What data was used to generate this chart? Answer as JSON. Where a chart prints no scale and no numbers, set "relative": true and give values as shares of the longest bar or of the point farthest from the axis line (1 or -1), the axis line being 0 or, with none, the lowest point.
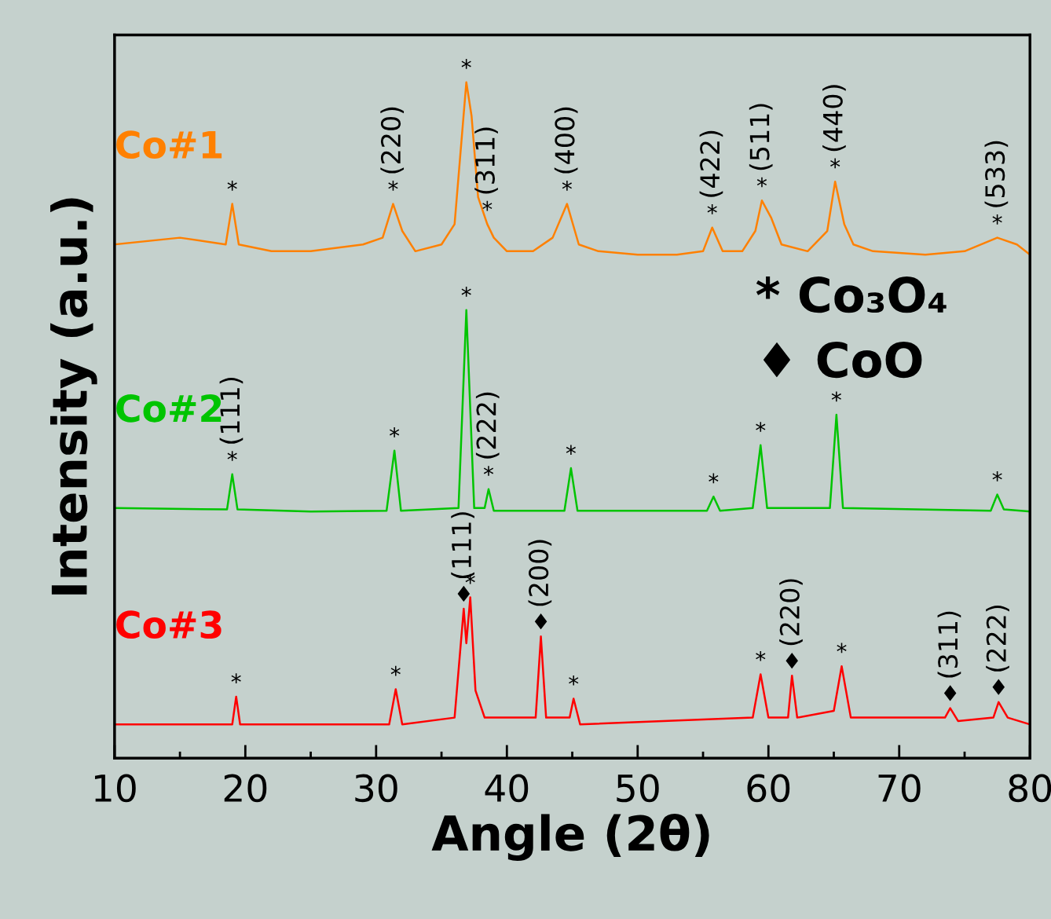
{
  "chart_data": {
    "type": "line",
    "relative": true,
    "xlabel": "Angle (2θ)",
    "ylabel": "Intensity (a.u.)",
    "xlim": [
      10,
      80
    ],
    "xticks": [
      10,
      20,
      30,
      40,
      50,
      60,
      70,
      80
    ],
    "grid": false,
    "legend": false,
    "series": [
      {
        "name": "Co#1",
        "color": "#ff8000",
        "x": [
          10,
          15,
          18.5,
          19,
          19.5,
          22,
          25,
          29,
          30.5,
          31.3,
          32,
          33,
          35,
          36,
          36.6,
          36.9,
          37.3,
          37.8,
          38.5,
          39,
          40,
          42,
          43.5,
          44.6,
          45.5,
          47,
          50,
          53,
          55,
          55.7,
          56.5,
          58,
          59,
          59.5,
          60.2,
          61,
          63,
          64.5,
          65.1,
          65.8,
          66.5,
          68,
          72,
          75,
          77.5,
          79,
          80
        ],
        "values": [
          0.76,
          0.77,
          0.76,
          0.82,
          0.76,
          0.75,
          0.75,
          0.76,
          0.77,
          0.82,
          0.78,
          0.75,
          0.76,
          0.79,
          0.93,
          1.0,
          0.95,
          0.83,
          0.79,
          0.77,
          0.75,
          0.75,
          0.77,
          0.82,
          0.76,
          0.75,
          0.745,
          0.745,
          0.75,
          0.785,
          0.75,
          0.75,
          0.78,
          0.825,
          0.8,
          0.76,
          0.75,
          0.78,
          0.853,
          0.79,
          0.76,
          0.75,
          0.745,
          0.75,
          0.77,
          0.76,
          0.745
        ]
      },
      {
        "name": "Co#2",
        "color": "#00c400",
        "x": [
          10,
          18.6,
          19,
          19.4,
          25,
          30.8,
          31.4,
          31.9,
          36.3,
          36.9,
          37.5,
          38.3,
          38.6,
          39,
          44.4,
          44.9,
          45.4,
          55.3,
          55.8,
          56.3,
          58.8,
          59.4,
          59.9,
          64.7,
          65.2,
          65.7,
          77,
          77.5,
          78,
          80
        ],
        "values": [
          0.37,
          0.368,
          0.42,
          0.368,
          0.365,
          0.366,
          0.455,
          0.366,
          0.37,
          0.663,
          0.37,
          0.37,
          0.398,
          0.366,
          0.366,
          0.429,
          0.366,
          0.366,
          0.387,
          0.366,
          0.37,
          0.463,
          0.37,
          0.37,
          0.508,
          0.37,
          0.366,
          0.39,
          0.368,
          0.365
        ]
      },
      {
        "name": "Co#3",
        "color": "#ff0000",
        "x": [
          10,
          19,
          19.3,
          19.6,
          31,
          31.5,
          32,
          36,
          36.7,
          36.9,
          37.2,
          37.6,
          38.3,
          42.2,
          42.6,
          43,
          44.8,
          45.1,
          45.6,
          58.8,
          59.4,
          60,
          61.5,
          61.8,
          62.2,
          65,
          65.6,
          66.3,
          73.5,
          73.9,
          74.5,
          77.2,
          77.6,
          78.3,
          80
        ],
        "values": [
          0.05,
          0.05,
          0.091,
          0.05,
          0.05,
          0.102,
          0.05,
          0.06,
          0.221,
          0.17,
          0.238,
          0.1,
          0.06,
          0.06,
          0.18,
          0.06,
          0.06,
          0.088,
          0.05,
          0.06,
          0.124,
          0.06,
          0.06,
          0.122,
          0.06,
          0.07,
          0.136,
          0.06,
          0.06,
          0.074,
          0.055,
          0.06,
          0.083,
          0.06,
          0.05
        ]
      }
    ],
    "annotations": [
      "* Co₃O₄",
      "♦ CoO",
      {
        "text": "(220)",
        "x": 31.3,
        "y": 0.82
      },
      {
        "text": "(311)",
        "x": 38.5,
        "y": 0.79
      },
      {
        "text": "(400)",
        "x": 44.6,
        "y": 0.82
      },
      {
        "text": "(422)",
        "x": 55.7,
        "y": 0.785
      },
      {
        "text": "(511)",
        "x": 59.5,
        "y": 0.825
      },
      {
        "text": "(440)",
        "x": 65.1,
        "y": 0.853
      },
      {
        "text": "(533)",
        "x": 77.5,
        "y": 0.77
      },
      {
        "text": "*",
        "x": 19,
        "y": 0.82
      },
      {
        "text": "*",
        "x": 31.3,
        "y": 0.82
      },
      {
        "text": "*",
        "x": 36.9,
        "y": 1.0
      },
      {
        "text": "*",
        "x": 38.5,
        "y": 0.79
      },
      {
        "text": "*",
        "x": 44.6,
        "y": 0.82
      },
      {
        "text": "*",
        "x": 55.7,
        "y": 0.785
      },
      {
        "text": "*",
        "x": 59.5,
        "y": 0.825
      },
      {
        "text": "*",
        "x": 65.1,
        "y": 0.853
      },
      {
        "text": "*",
        "x": 77.5,
        "y": 0.77
      },
      {
        "text": "(111)",
        "x": 19,
        "y": 0.42
      },
      {
        "text": "(222)",
        "x": 38.6,
        "y": 0.398
      },
      {
        "text": "*",
        "x": 19,
        "y": 0.42
      },
      {
        "text": "*",
        "x": 31.4,
        "y": 0.455
      },
      {
        "text": "*",
        "x": 36.9,
        "y": 0.663
      },
      {
        "text": "*",
        "x": 38.6,
        "y": 0.398
      },
      {
        "text": "*",
        "x": 44.9,
        "y": 0.429
      },
      {
        "text": "*",
        "x": 55.8,
        "y": 0.387
      },
      {
        "text": "*",
        "x": 59.4,
        "y": 0.463
      },
      {
        "text": "*",
        "x": 65.2,
        "y": 0.508
      },
      {
        "text": "*",
        "x": 77.5,
        "y": 0.39
      },
      {
        "text": "(111)",
        "x": 36.7,
        "y": 0.221
      },
      {
        "text": "(200)",
        "x": 42.6,
        "y": 0.18
      },
      {
        "text": "(220)",
        "x": 61.8,
        "y": 0.122
      },
      {
        "text": "(311)",
        "x": 73.9,
        "y": 0.074
      },
      {
        "text": "(222)",
        "x": 77.6,
        "y": 0.083
      },
      {
        "text": "*",
        "x": 19.3,
        "y": 0.091
      },
      {
        "text": "*",
        "x": 31.5,
        "y": 0.102
      },
      {
        "text": "*",
        "x": 37.2,
        "y": 0.238
      },
      {
        "text": "*",
        "x": 45.1,
        "y": 0.088
      },
      {
        "text": "*",
        "x": 59.4,
        "y": 0.124
      },
      {
        "text": "*",
        "x": 65.6,
        "y": 0.136
      },
      {
        "text": "♦",
        "x": 36.7,
        "y": 0.221
      },
      {
        "text": "♦",
        "x": 42.6,
        "y": 0.18
      },
      {
        "text": "♦",
        "x": 61.8,
        "y": 0.122
      },
      {
        "text": "♦",
        "x": 73.9,
        "y": 0.074
      },
      {
        "text": "♦",
        "x": 77.6,
        "y": 0.083
      }
    ]
  }
}
